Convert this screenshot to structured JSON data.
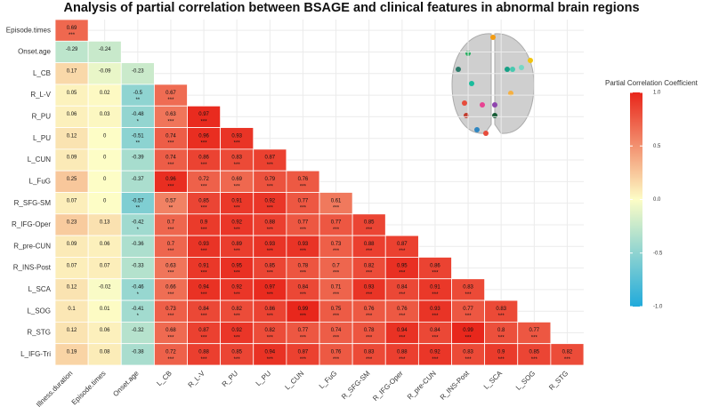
{
  "chart_data": {
    "type": "heatmap",
    "title": "Analysis of partial correlation between BSAGE and clinical features in abnormal brain regions",
    "x_categories": [
      "Illness.duration",
      "Episode.times",
      "Onset.age",
      "L_CB",
      "R_L-V",
      "R_PU",
      "L_PU",
      "L_CUN",
      "L_FuG",
      "R_SFG-SM",
      "R_IFG-Oper",
      "R_pre-CUN",
      "R_INS-Post",
      "L_SCA",
      "L_SOG",
      "R_STG"
    ],
    "y_categories": [
      "Episode.times",
      "Onset.age",
      "L_CB",
      "R_L-V",
      "R_PU",
      "L_PU",
      "L_CUN",
      "L_FuG",
      "R_SFG-SM",
      "R_IFG-Oper",
      "R_pre-CUN",
      "R_INS-Post",
      "L_SCA",
      "L_SOG",
      "R_STG",
      "L_IFG-Tri"
    ],
    "values": [
      [
        0.69
      ],
      [
        -0.29,
        -0.24
      ],
      [
        0.17,
        -0.09,
        -0.23
      ],
      [
        0.05,
        0.02,
        -0.5,
        0.67
      ],
      [
        0.06,
        0.03,
        -0.48,
        0.63,
        0.97
      ],
      [
        0.12,
        0,
        -0.51,
        0.74,
        0.96,
        0.93
      ],
      [
        0.09,
        0,
        -0.39,
        0.74,
        0.86,
        0.83,
        0.87
      ],
      [
        0.25,
        0,
        -0.37,
        0.96,
        0.72,
        0.69,
        0.79,
        0.76
      ],
      [
        0.07,
        0,
        -0.57,
        0.57,
        0.85,
        0.91,
        0.92,
        0.77,
        0.61
      ],
      [
        0.23,
        0.13,
        -0.42,
        0.7,
        0.9,
        0.92,
        0.88,
        0.77,
        0.77,
        0.85
      ],
      [
        0.09,
        0.06,
        -0.36,
        0.7,
        0.93,
        0.89,
        0.93,
        0.93,
        0.73,
        0.88,
        0.87
      ],
      [
        0.07,
        0.07,
        -0.33,
        0.63,
        0.91,
        0.95,
        0.85,
        0.78,
        0.7,
        0.82,
        0.95,
        0.86
      ],
      [
        0.12,
        -0.02,
        -0.46,
        0.66,
        0.94,
        0.92,
        0.97,
        0.84,
        0.71,
        0.93,
        0.84,
        0.91,
        0.83
      ],
      [
        0.1,
        0.01,
        -0.41,
        0.73,
        0.84,
        0.82,
        0.86,
        0.99,
        0.75,
        0.76,
        0.76,
        0.93,
        0.77,
        0.83
      ],
      [
        0.12,
        0.06,
        -0.32,
        0.68,
        0.87,
        0.92,
        0.82,
        0.77,
        0.74,
        0.78,
        0.94,
        0.84,
        0.99,
        0.8,
        0.77
      ],
      [
        0.19,
        0.08,
        -0.38,
        0.72,
        0.88,
        0.85,
        0.94,
        0.87,
        0.76,
        0.83,
        0.88,
        0.92,
        0.83,
        0.9,
        0.85,
        0.82
      ]
    ],
    "stars": [
      [
        "***"
      ],
      [
        null,
        null
      ],
      [
        null,
        null,
        null
      ],
      [
        null,
        null,
        "**",
        "***"
      ],
      [
        null,
        null,
        "*",
        "***",
        "***"
      ],
      [
        null,
        null,
        "**",
        "***",
        "***",
        "***"
      ],
      [
        null,
        null,
        null,
        "***",
        "***",
        "***",
        "***"
      ],
      [
        null,
        null,
        null,
        "***",
        "***",
        "***",
        "***",
        "***"
      ],
      [
        null,
        null,
        "**",
        "**",
        "***",
        "***",
        "***",
        "***",
        "***"
      ],
      [
        null,
        null,
        "*",
        "***",
        "***",
        "***",
        "***",
        "***",
        "***",
        "***"
      ],
      [
        null,
        null,
        null,
        "***",
        "***",
        "***",
        "***",
        "***",
        "***",
        "***",
        "***"
      ],
      [
        null,
        null,
        null,
        "***",
        "***",
        "***",
        "***",
        "***",
        "***",
        "***",
        "***",
        "***"
      ],
      [
        null,
        null,
        "*",
        "***",
        "***",
        "***",
        "***",
        "***",
        "***",
        "***",
        "***",
        "***",
        "***"
      ],
      [
        null,
        null,
        "*",
        "***",
        "***",
        "***",
        "***",
        "***",
        "***",
        "***",
        "***",
        "***",
        "***",
        "***"
      ],
      [
        null,
        null,
        null,
        "***",
        "***",
        "***",
        "***",
        "***",
        "***",
        "***",
        "***",
        "***",
        "***",
        "***",
        "***"
      ],
      [
        null,
        null,
        null,
        "***",
        "***",
        "***",
        "***",
        "***",
        "***",
        "***",
        "***",
        "***",
        "***",
        "***",
        "***",
        "***"
      ]
    ],
    "colorbar": {
      "title": "Partial Correlation Coefficient",
      "lim": [
        -1,
        1
      ],
      "colors": [
        "#20aadb",
        "#fdfdc6",
        "#e8251a"
      ],
      "ticks": [
        {
          "value": 1,
          "label": "1.0"
        },
        {
          "value": 0.5,
          "label": "0.5"
        },
        {
          "value": 0,
          "label": "0.0"
        },
        {
          "value": -0.5,
          "label": "-0.5"
        },
        {
          "value": -1,
          "label": "-1.0"
        }
      ]
    }
  }
}
